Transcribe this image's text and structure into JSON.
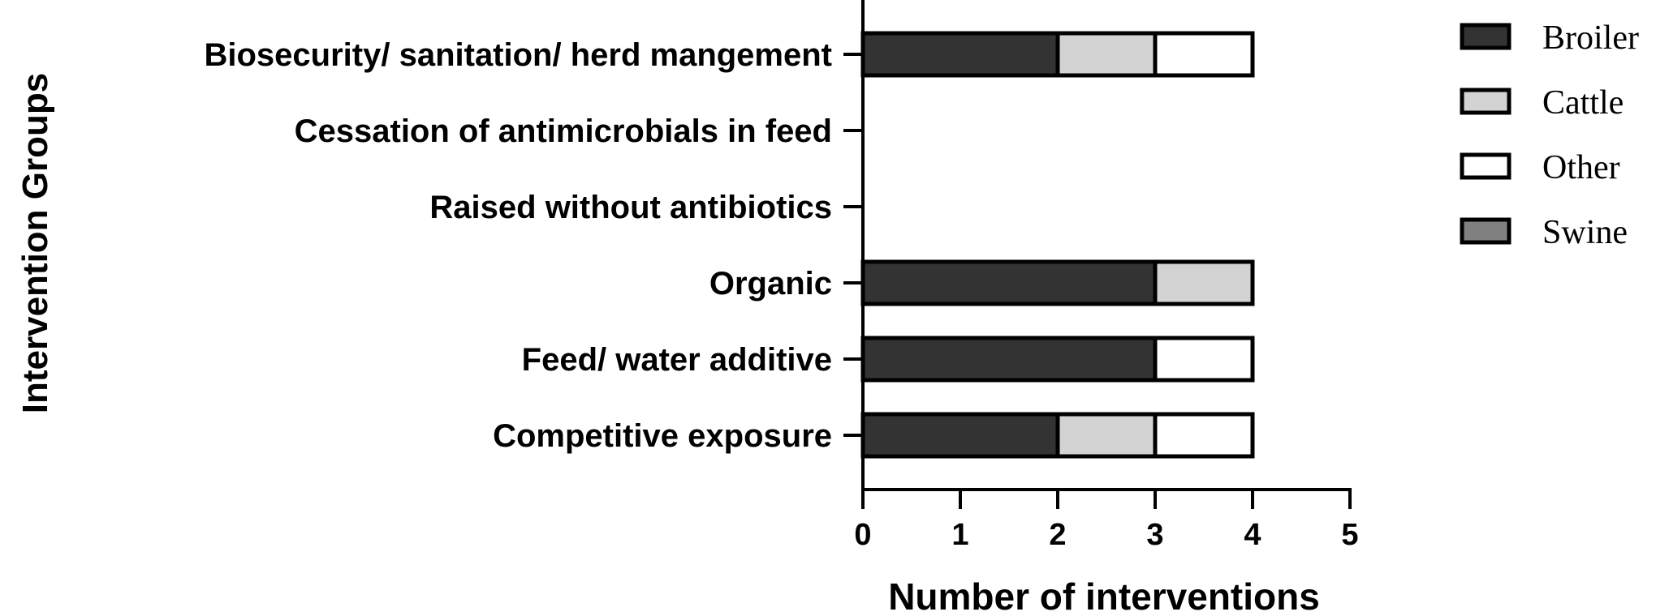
{
  "chart_data": {
    "type": "bar",
    "orientation": "horizontal",
    "stacked": true,
    "title": "",
    "xlabel": "Number of interventions",
    "ylabel": "Intervention Groups",
    "xlim": [
      0,
      5
    ],
    "x_ticks": [
      "0",
      "1",
      "2",
      "3",
      "4",
      "5"
    ],
    "categories": [
      "Biosecurity/ sanitation/ herd mangement",
      "Cessation of antimicrobials in feed",
      "Raised without antibiotics",
      "Organic",
      "Feed/ water additive",
      "Competitive exposure"
    ],
    "series": [
      {
        "name": "Broiler",
        "color": "#333333",
        "values": [
          2,
          0,
          0,
          3,
          3,
          2
        ]
      },
      {
        "name": "Cattle",
        "color": "#d3d3d3",
        "values": [
          1,
          0,
          0,
          1,
          0,
          1
        ]
      },
      {
        "name": "Other",
        "color": "#ffffff",
        "values": [
          1,
          0,
          0,
          0,
          1,
          1
        ]
      },
      {
        "name": "Swine",
        "color": "#808080",
        "values": [
          0,
          0,
          0,
          0,
          0,
          0
        ]
      }
    ],
    "grid": false,
    "legend_position": "right"
  }
}
